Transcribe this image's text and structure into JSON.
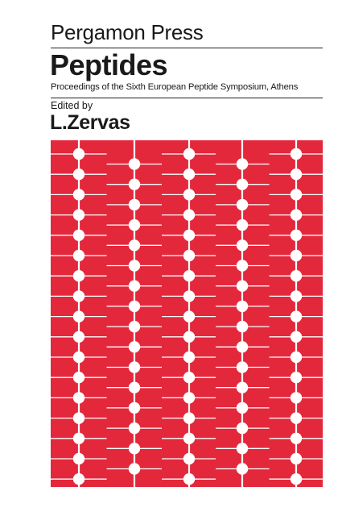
{
  "cover": {
    "publisher": "Pergamon Press",
    "title": "Peptides",
    "subtitle": "Proceedings of the Sixth European Peptide Symposium, Athens",
    "edited_by": "Edited by",
    "editor": "L.Zervas"
  },
  "colors": {
    "artwork_red": "#e3283c",
    "text": "#1a1a1a",
    "background": "#ffffff"
  }
}
